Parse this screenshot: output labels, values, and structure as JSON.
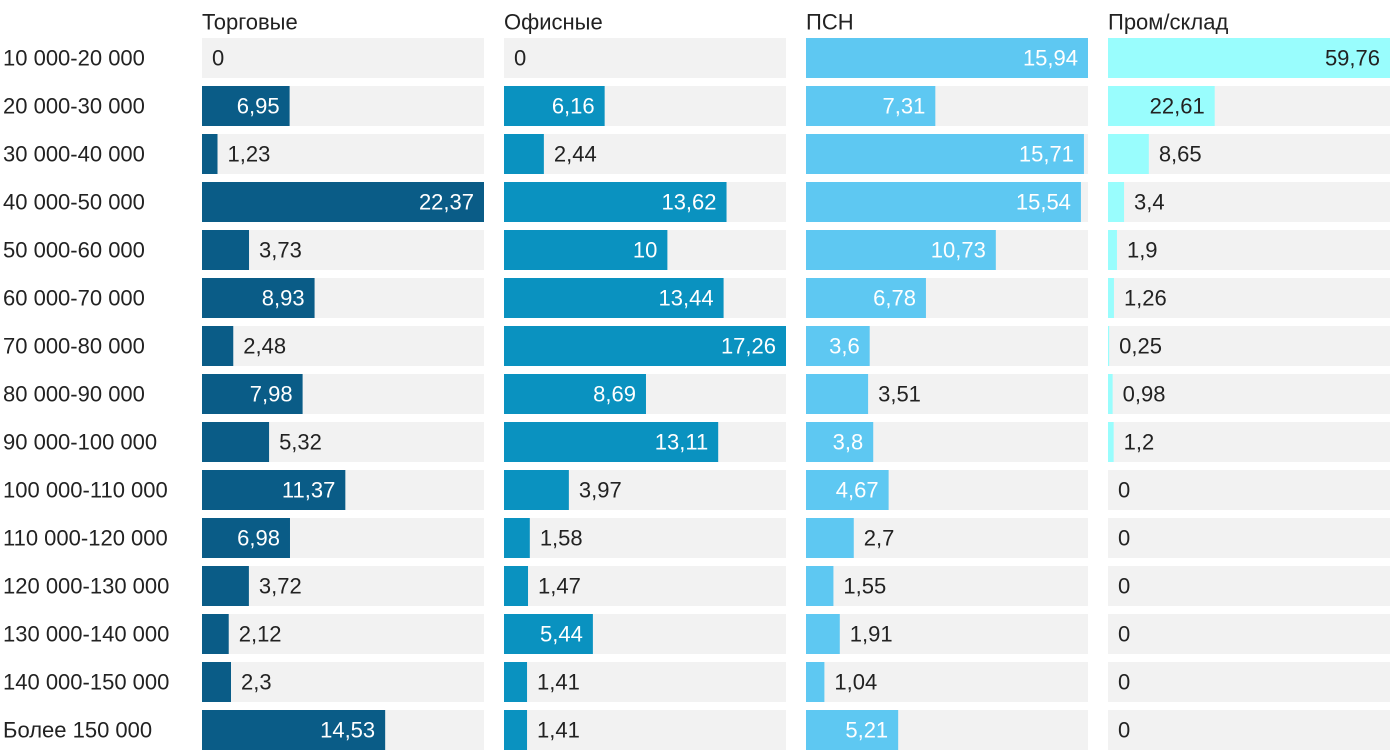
{
  "chart_data": {
    "type": "bar",
    "orientation": "horizontal",
    "layout": "small-multiples",
    "categories": [
      "10 000-20 000",
      "20 000-30 000",
      "30 000-40 000",
      "40 000-50 000",
      "50 000-60 000",
      "60 000-70 000",
      "70 000-80 000",
      "80 000-90 000",
      "90 000-100 000",
      "100 000-110 000",
      "110 000-120 000",
      "120 000-130 000",
      "130 000-140 000",
      "140 000-150 000",
      "Более 150 000"
    ],
    "series": [
      {
        "name": "Торговые",
        "color": "#0a5c87",
        "values": [
          0,
          6.95,
          1.23,
          22.37,
          3.73,
          8.93,
          2.48,
          7.98,
          5.32,
          11.37,
          6.98,
          3.72,
          2.12,
          2.3,
          14.53
        ],
        "labels": [
          "0",
          "6,95",
          "1,23",
          "22,37",
          "3,73",
          "8,93",
          "2,48",
          "7,98",
          "5,32",
          "11,37",
          "6,98",
          "3,72",
          "2,12",
          "2,3",
          "14,53"
        ]
      },
      {
        "name": "Офисные",
        "color": "#0a92c0",
        "values": [
          0,
          6.16,
          2.44,
          13.62,
          10,
          13.44,
          17.26,
          8.69,
          13.11,
          3.97,
          1.58,
          1.47,
          5.44,
          1.41,
          1.41
        ],
        "labels": [
          "0",
          "6,16",
          "2,44",
          "13,62",
          "10",
          "13,44",
          "17,26",
          "8,69",
          "13,11",
          "3,97",
          "1,58",
          "1,47",
          "5,44",
          "1,41",
          "1,41"
        ]
      },
      {
        "name": "ПСН",
        "color": "#5ec8f2",
        "values": [
          15.94,
          7.31,
          15.71,
          15.54,
          10.73,
          6.78,
          3.6,
          3.51,
          3.8,
          4.67,
          2.7,
          1.55,
          1.91,
          1.04,
          5.21
        ],
        "labels": [
          "15,94",
          "7,31",
          "15,71",
          "15,54",
          "10,73",
          "6,78",
          "3,6",
          "3,51",
          "3,8",
          "4,67",
          "2,7",
          "1,55",
          "1,91",
          "1,04",
          "5,21"
        ]
      },
      {
        "name": "Пром/склад",
        "color": "#99fdfd",
        "values": [
          59.76,
          22.61,
          8.65,
          3.4,
          1.9,
          1.26,
          0.25,
          0.98,
          1.2,
          0,
          0,
          0,
          0,
          0,
          0
        ],
        "labels": [
          "59,76",
          "22,61",
          "8,65",
          "3,4",
          "1,9",
          "1,26",
          "0,25",
          "0,98",
          "1,2",
          "0",
          "0",
          "0",
          "0",
          "0",
          "0"
        ]
      }
    ],
    "background_color": "#f2f2f2",
    "legend": "none",
    "grid": false
  }
}
